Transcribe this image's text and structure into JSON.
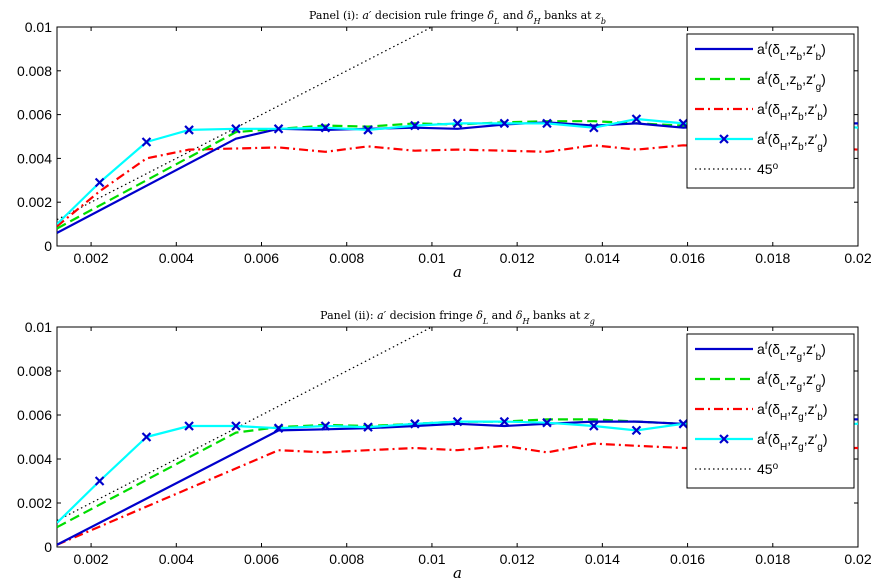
{
  "chart_data": [
    {
      "type": "line",
      "title_prefix": "Panel (i): ",
      "title_var": "a′",
      "title_mid": " decision rule fringe ",
      "title_dl": "δ",
      "title_dl_sub": "L",
      "title_and": " and ",
      "title_dh": "δ",
      "title_dh_sub": "H",
      "title_banks": " banks at ",
      "title_z": "z",
      "title_z_sub": "b",
      "xlabel": "a",
      "xlim": [
        0.0012,
        0.02
      ],
      "ylim": [
        0,
        0.01
      ],
      "xticks": [
        "0.002",
        "0.004",
        "0.006",
        "0.008",
        "0.01",
        "0.012",
        "0.014",
        "0.016",
        "0.018",
        "0.02"
      ],
      "xtick_values": [
        0.002,
        0.004,
        0.006,
        0.008,
        0.01,
        0.012,
        0.014,
        0.016,
        0.018,
        0.02
      ],
      "yticks": [
        "0",
        "0.002",
        "0.004",
        "0.006",
        "0.008",
        "0.01"
      ],
      "ytick_values": [
        0,
        0.002,
        0.004,
        0.006,
        0.008,
        0.01
      ],
      "legend_position": "top-right",
      "series": [
        {
          "name": "a^f(δ_L,z_b,z′_b)",
          "color": "#0000cc",
          "style": "solid",
          "marker": "none",
          "x": [
            0.0012,
            0.0054,
            0.0064,
            0.0075,
            0.0085,
            0.0096,
            0.0106,
            0.0117,
            0.0127,
            0.0138,
            0.0148,
            0.0159,
            0.0169,
            0.0179,
            0.019,
            0.02
          ],
          "y": [
            0.0006,
            0.0049,
            0.00535,
            0.0053,
            0.00535,
            0.0054,
            0.00535,
            0.00555,
            0.00565,
            0.0055,
            0.0056,
            0.0054,
            0.0055,
            0.0055,
            0.0056,
            0.0056
          ]
        },
        {
          "name": "a^f(δ_L,z_b,z′_g)",
          "color": "#00dd00",
          "style": "dashed",
          "marker": "none",
          "x": [
            0.0012,
            0.0054,
            0.0064,
            0.0075,
            0.0085,
            0.0096,
            0.0106,
            0.0117,
            0.0127,
            0.0138,
            0.0148,
            0.0159,
            0.0169,
            0.0179,
            0.019,
            0.02
          ],
          "y": [
            0.0008,
            0.0052,
            0.00535,
            0.0055,
            0.00545,
            0.0056,
            0.00555,
            0.00565,
            0.0057,
            0.0057,
            0.0056,
            0.0055,
            0.0056,
            0.0056,
            0.0055,
            0.0056
          ]
        },
        {
          "name": "a^f(δ_H,z_b,z′_b)",
          "color": "#ff0000",
          "style": "dashdot",
          "marker": "none",
          "x": [
            0.0012,
            0.0022,
            0.0033,
            0.0043,
            0.0054,
            0.0064,
            0.0075,
            0.0085,
            0.0096,
            0.0106,
            0.0117,
            0.0127,
            0.0138,
            0.0148,
            0.0159,
            0.0169,
            0.0179,
            0.019,
            0.02
          ],
          "y": [
            0.0009,
            0.0025,
            0.004,
            0.0044,
            0.00445,
            0.0045,
            0.0043,
            0.00455,
            0.00435,
            0.0044,
            0.00435,
            0.0043,
            0.0046,
            0.0044,
            0.0046,
            0.0045,
            0.0044,
            0.0045,
            0.0044
          ]
        },
        {
          "name": "a^f(δ_H,z_b,z′_g)",
          "color": "#00ffff",
          "style": "solid",
          "marker": "x",
          "x": [
            0.0012,
            0.0022,
            0.0033,
            0.0043,
            0.0054,
            0.0064,
            0.0075,
            0.0085,
            0.0096,
            0.0106,
            0.0117,
            0.0127,
            0.0138,
            0.0148,
            0.0159,
            0.0169,
            0.0179,
            0.019,
            0.02
          ],
          "y": [
            0.001,
            0.0029,
            0.00475,
            0.0053,
            0.00535,
            0.00535,
            0.0054,
            0.0053,
            0.0055,
            0.0056,
            0.0056,
            0.0056,
            0.0054,
            0.0058,
            0.0056,
            0.0055,
            0.0055,
            0.0056,
            0.0054
          ]
        },
        {
          "name": "45^o",
          "color": "#000000",
          "style": "dotted",
          "marker": "none",
          "x": [
            0.0012,
            0.01
          ],
          "y": [
            0.0012,
            0.01
          ]
        }
      ]
    },
    {
      "type": "line",
      "title_prefix": "Panel (ii): ",
      "title_var": "a′",
      "title_mid": " decision fringe ",
      "title_dl": "δ",
      "title_dl_sub": "L",
      "title_and": " and ",
      "title_dh": "δ",
      "title_dh_sub": "H",
      "title_banks": " banks at ",
      "title_z": "z",
      "title_z_sub": "g",
      "xlabel": "a",
      "xlim": [
        0.0012,
        0.02
      ],
      "ylim": [
        0,
        0.01
      ],
      "xticks": [
        "0.002",
        "0.004",
        "0.006",
        "0.008",
        "0.01",
        "0.012",
        "0.014",
        "0.016",
        "0.018",
        "0.02"
      ],
      "xtick_values": [
        0.002,
        0.004,
        0.006,
        0.008,
        0.01,
        0.012,
        0.014,
        0.016,
        0.018,
        0.02
      ],
      "yticks": [
        "0",
        "0.002",
        "0.004",
        "0.006",
        "0.008",
        "0.01"
      ],
      "ytick_values": [
        0,
        0.002,
        0.004,
        0.006,
        0.008,
        0.01
      ],
      "legend_position": "top-right",
      "series": [
        {
          "name": "a^f(δ_L,z_g,z′_b)",
          "color": "#0000cc",
          "style": "solid",
          "marker": "none",
          "x": [
            0.0012,
            0.0064,
            0.0075,
            0.0085,
            0.0096,
            0.0106,
            0.0117,
            0.0127,
            0.0138,
            0.0148,
            0.0159,
            0.0169,
            0.0179,
            0.019,
            0.02
          ],
          "y": [
            0.0001,
            0.0053,
            0.00535,
            0.0054,
            0.0055,
            0.0056,
            0.0055,
            0.0056,
            0.0057,
            0.0057,
            0.0056,
            0.0056,
            0.0057,
            0.0058,
            0.0058
          ]
        },
        {
          "name": "a^f(δ_L,z_g,z′_g)",
          "color": "#00dd00",
          "style": "dashed",
          "marker": "none",
          "x": [
            0.0012,
            0.0054,
            0.0064,
            0.0075,
            0.0085,
            0.0096,
            0.0106,
            0.0117,
            0.0127,
            0.0138,
            0.0148,
            0.0159,
            0.0169,
            0.0179,
            0.019,
            0.02
          ],
          "y": [
            0.0009,
            0.0052,
            0.00545,
            0.00555,
            0.0055,
            0.0056,
            0.0057,
            0.0057,
            0.0058,
            0.0058,
            0.0057,
            0.0056,
            0.0056,
            0.0057,
            0.0057,
            0.0057
          ]
        },
        {
          "name": "a^f(δ_H,z_g,z′_b)",
          "color": "#ff0000",
          "style": "dashdot",
          "marker": "none",
          "x": [
            0.0012,
            0.0064,
            0.0075,
            0.0085,
            0.0096,
            0.0106,
            0.0117,
            0.0127,
            0.0138,
            0.0148,
            0.0159,
            0.0169,
            0.0179,
            0.019,
            0.02
          ],
          "y": [
            0.0001,
            0.0044,
            0.0043,
            0.0044,
            0.0045,
            0.0044,
            0.0046,
            0.0043,
            0.0047,
            0.0046,
            0.0045,
            0.0045,
            0.0044,
            0.0045,
            0.0045
          ]
        },
        {
          "name": "a^f(δ_H,z_g,z′_g)",
          "color": "#00ffff",
          "style": "solid",
          "marker": "x",
          "x": [
            0.0012,
            0.0022,
            0.0033,
            0.0043,
            0.0054,
            0.0064,
            0.0075,
            0.0085,
            0.0096,
            0.0106,
            0.0117,
            0.0127,
            0.0138,
            0.0148,
            0.0159,
            0.0169,
            0.0179,
            0.019,
            0.02
          ],
          "y": [
            0.0011,
            0.003,
            0.005,
            0.0055,
            0.0055,
            0.0054,
            0.0055,
            0.00545,
            0.0056,
            0.0057,
            0.0057,
            0.00565,
            0.0055,
            0.0053,
            0.0056,
            0.0057,
            0.0056,
            0.0056,
            0.0056
          ]
        },
        {
          "name": "45^o",
          "color": "#000000",
          "style": "dotted",
          "marker": "none",
          "x": [
            0.0012,
            0.01
          ],
          "y": [
            0.0012,
            0.01
          ]
        }
      ]
    }
  ]
}
